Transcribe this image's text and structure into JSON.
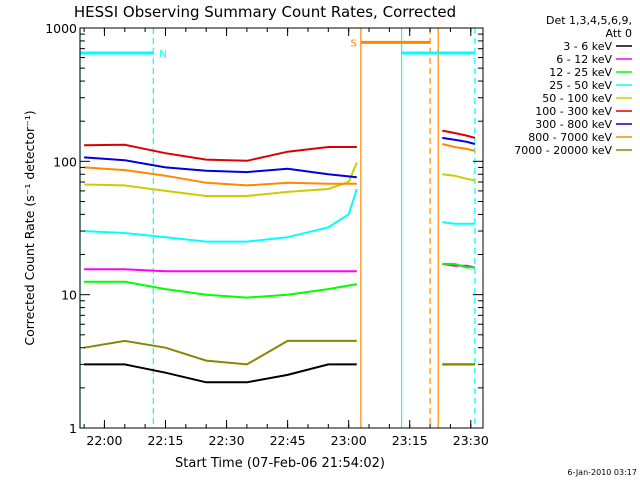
{
  "chart_data": {
    "type": "line",
    "title": "HESSI Observing Summary Count Rates, Corrected",
    "xlabel": "Start Time (07-Feb-06 21:54:02)",
    "ylabel": "Corrected Count Rate (s⁻¹ detector⁻¹)",
    "y_scale": "log",
    "ylim": [
      1,
      1000
    ],
    "xlim": [
      "21:54",
      "23:33"
    ],
    "x_ticks": [
      "22:00",
      "22:15",
      "22:30",
      "22:45",
      "23:00",
      "23:15",
      "23:30"
    ],
    "y_ticks": [
      "1",
      "10",
      "100",
      "1000"
    ],
    "grid": false,
    "legend_position": "right",
    "legend_header": [
      "Det 1,3,4,5,6,9,",
      "Att 0"
    ],
    "timestamp": "6-Jan-2010 03:17",
    "series": [
      {
        "name": "3 - 6 keV",
        "color": "#000000",
        "segments": [
          {
            "x": [
              "21:55",
              "22:05",
              "22:15",
              "22:25",
              "22:35",
              "22:45",
              "22:55",
              "23:02"
            ],
            "y": [
              3,
              3,
              2.6,
              2.2,
              2.2,
              2.5,
              3,
              3
            ]
          },
          {
            "x": [
              "23:23",
              "23:26",
              "23:29",
              "23:31"
            ],
            "y": [
              3,
              3,
              3,
              3
            ]
          }
        ]
      },
      {
        "name": "6 - 12 keV",
        "color": "#ff00ff",
        "segments": [
          {
            "x": [
              "21:55",
              "22:05",
              "22:15",
              "22:25",
              "22:35",
              "22:45",
              "22:55",
              "23:02"
            ],
            "y": [
              15.5,
              15.5,
              15,
              15,
              15,
              15,
              15,
              15
            ]
          },
          {
            "x": [
              "23:23",
              "23:26",
              "23:29",
              "23:31"
            ],
            "y": [
              17,
              16.5,
              16.5,
              16
            ]
          }
        ]
      },
      {
        "name": "12 - 25 keV",
        "color": "#00ff00",
        "segments": [
          {
            "x": [
              "21:55",
              "22:05",
              "22:15",
              "22:25",
              "22:35",
              "22:45",
              "22:55",
              "23:02"
            ],
            "y": [
              12.5,
              12.5,
              11,
              10,
              9.5,
              10,
              11,
              12
            ]
          },
          {
            "x": [
              "23:23",
              "23:26",
              "23:29",
              "23:31"
            ],
            "y": [
              17,
              17,
              16,
              16
            ]
          }
        ]
      },
      {
        "name": "25 - 50 keV",
        "color": "#00ffff",
        "segments": [
          {
            "x": [
              "21:55",
              "22:05",
              "22:15",
              "22:25",
              "22:35",
              "22:45",
              "22:55",
              "23:00",
              "23:02"
            ],
            "y": [
              30,
              29,
              27,
              25,
              25,
              27,
              32,
              40,
              62
            ]
          },
          {
            "x": [
              "23:23",
              "23:26",
              "23:29",
              "23:31"
            ],
            "y": [
              35,
              34,
              34,
              34
            ]
          }
        ]
      },
      {
        "name": "50 - 100 keV",
        "color": "#cccc00",
        "segments": [
          {
            "x": [
              "21:55",
              "22:05",
              "22:15",
              "22:25",
              "22:35",
              "22:45",
              "22:55",
              "23:00",
              "23:02"
            ],
            "y": [
              67,
              66,
              60,
              55,
              55,
              59,
              62,
              70,
              98
            ]
          },
          {
            "x": [
              "23:23",
              "23:26",
              "23:29",
              "23:31"
            ],
            "y": [
              80,
              78,
              74,
              72
            ]
          }
        ]
      },
      {
        "name": "100 - 300 keV",
        "color": "#dd0000",
        "segments": [
          {
            "x": [
              "21:55",
              "22:05",
              "22:15",
              "22:25",
              "22:35",
              "22:45",
              "22:55",
              "23:02"
            ],
            "y": [
              132,
              133,
              115,
              103,
              101,
              118,
              128,
              128
            ]
          },
          {
            "x": [
              "23:23",
              "23:26",
              "23:29",
              "23:31"
            ],
            "y": [
              170,
              163,
              156,
              150
            ]
          }
        ]
      },
      {
        "name": "300 - 800 keV",
        "color": "#0000dd",
        "segments": [
          {
            "x": [
              "21:55",
              "22:05",
              "22:15",
              "22:25",
              "22:35",
              "22:45",
              "22:55",
              "23:02"
            ],
            "y": [
              107,
              102,
              90,
              85,
              83,
              88,
              80,
              76
            ]
          },
          {
            "x": [
              "23:23",
              "23:26",
              "23:29",
              "23:31"
            ],
            "y": [
              150,
              145,
              140,
              135
            ]
          }
        ]
      },
      {
        "name": "800 - 7000 keV",
        "color": "#ff8800",
        "segments": [
          {
            "x": [
              "21:55",
              "22:05",
              "22:15",
              "22:25",
              "22:35",
              "22:45",
              "22:55",
              "23:02"
            ],
            "y": [
              90,
              86,
              78,
              69,
              66,
              69,
              68,
              68
            ]
          },
          {
            "x": [
              "23:23",
              "23:26",
              "23:29",
              "23:31"
            ],
            "y": [
              135,
              128,
              124,
              120
            ]
          }
        ]
      },
      {
        "name": "7000 - 20000 keV",
        "color": "#888800",
        "segments": [
          {
            "x": [
              "21:55",
              "22:05",
              "22:15",
              "22:25",
              "22:35",
              "22:45",
              "22:55",
              "23:02"
            ],
            "y": [
              4,
              4.5,
              4,
              3.2,
              3,
              4.5,
              4.5,
              4.5
            ]
          },
          {
            "x": [
              "23:23",
              "23:26",
              "23:29",
              "23:31"
            ],
            "y": [
              3,
              3,
              3,
              3
            ]
          }
        ]
      }
    ],
    "flags": [
      {
        "label": "N",
        "color": "#00ffff",
        "x_start": "21:54",
        "x_end": "22:12",
        "y": 650
      },
      {
        "label": "S",
        "color": "#ff8800",
        "x_start": "23:03",
        "x_end": "23:20",
        "y": 780
      },
      {
        "label": "",
        "color": "#00ffff",
        "x_start": "23:13",
        "x_end": "23:31",
        "y": 650
      }
    ],
    "markers": [
      {
        "x": "21:54",
        "color": "#00ffff",
        "style": "solid"
      },
      {
        "x": "22:12",
        "color": "#00ffff",
        "style": "dashed"
      },
      {
        "x": "23:03",
        "color": "#ff8800",
        "style": "solid"
      },
      {
        "x": "23:13",
        "color": "#00ffff",
        "style": "solid"
      },
      {
        "x": "23:20",
        "color": "#ff8800",
        "style": "dashed"
      },
      {
        "x": "23:22",
        "color": "#ff8800",
        "style": "solid"
      },
      {
        "x": "23:31",
        "color": "#00ffff",
        "style": "dashed"
      }
    ]
  }
}
